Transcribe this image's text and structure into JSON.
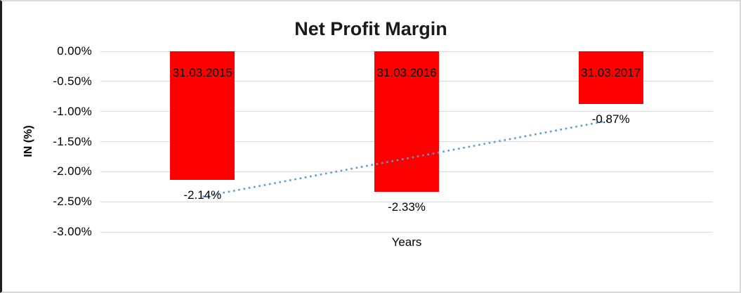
{
  "chart_data": {
    "type": "bar",
    "title": "Net Profit Margin",
    "xlabel": "Years",
    "ylabel": "IN (%)",
    "categories": [
      "31.03.2015",
      "31.03.2016",
      "31.03.2017"
    ],
    "values": [
      -2.14,
      -2.33,
      -0.87
    ],
    "value_labels": [
      "-2.14%",
      "-2.33%",
      "-0.87%"
    ],
    "ylim": [
      0,
      -3
    ],
    "ytick_labels": [
      "0.00%",
      "-0.50%",
      "-1.00%",
      "-1.50%",
      "-2.00%",
      "-2.50%",
      "-3.00%"
    ],
    "ytick_values": [
      0,
      -0.5,
      -1,
      -1.5,
      -2,
      -2.5,
      -3
    ],
    "grid": true,
    "legend": "none",
    "bar_color": "#FF0000",
    "gridline_color": "#D9D9D9",
    "label_color": "#000000",
    "trendline": {
      "type": "linear",
      "style": "dotted",
      "color": "#5B9BD5"
    }
  }
}
